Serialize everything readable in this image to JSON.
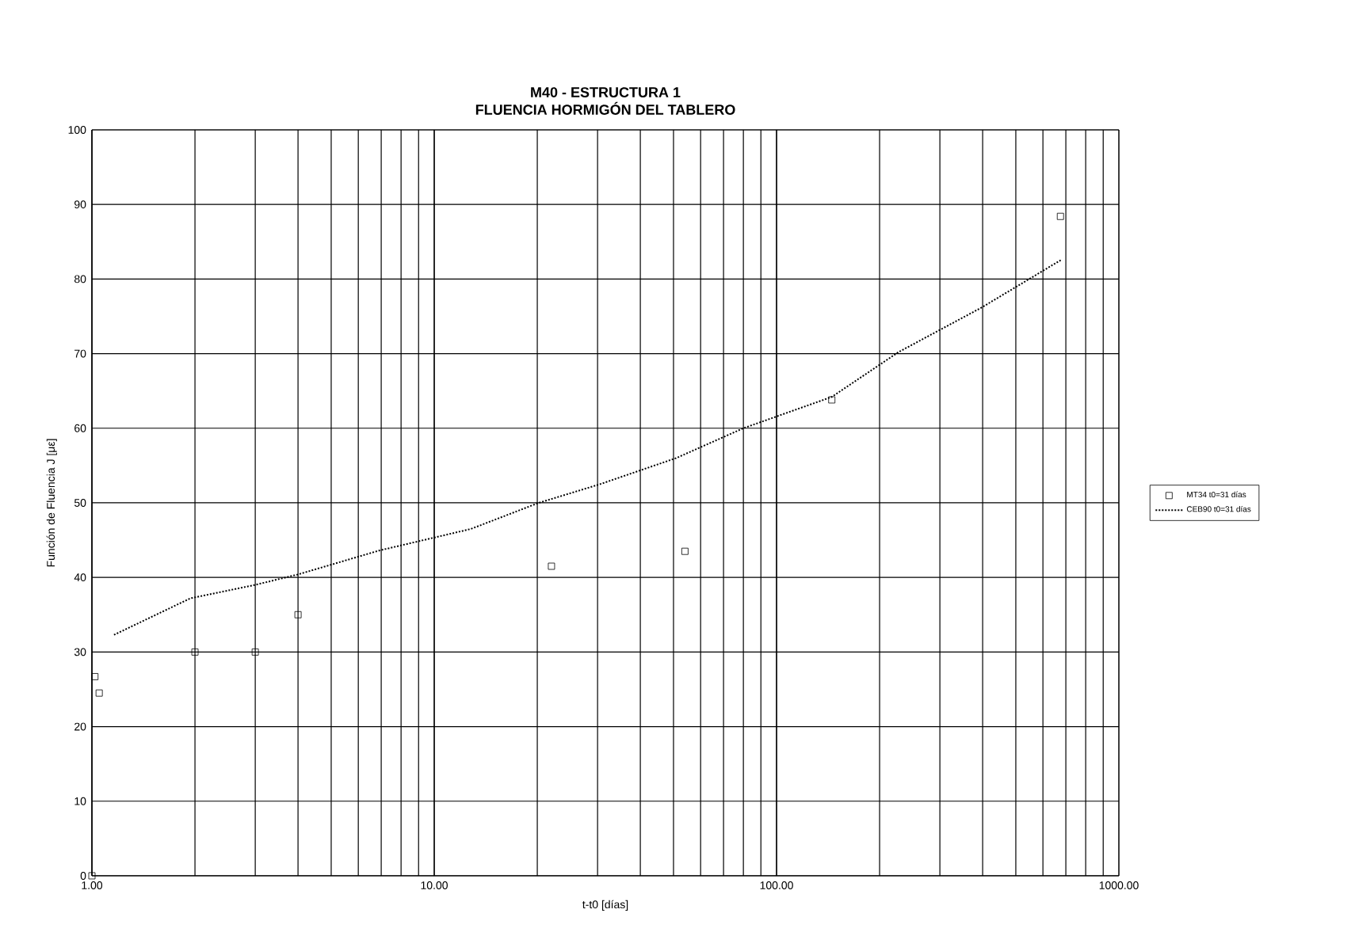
{
  "chart_data": {
    "type": "scatter",
    "title": "M40 - ESTRUCTURA 1",
    "subtitle": "FLUENCIA HORMIGÓN DEL TABLERO",
    "xlabel": "t-t0 [días]",
    "ylabel": "Función de Fluencia J [με]",
    "log": "x",
    "xlim": [
      1,
      1000
    ],
    "xticks": [
      {
        "value": 1,
        "label": "1.00"
      },
      {
        "value": 10,
        "label": "10.00"
      },
      {
        "value": 100,
        "label": "100.00"
      },
      {
        "value": 1000,
        "label": "1000.00"
      }
    ],
    "ylim": [
      0,
      100
    ],
    "yticks": [
      0,
      10,
      20,
      30,
      40,
      50,
      60,
      70,
      80,
      90,
      100
    ],
    "grid": true,
    "legend": "right",
    "series": [
      {
        "name": "MT34 t0=31 días",
        "marker": "square",
        "color": "#000000",
        "x": [
          1,
          1.02,
          1.05,
          2,
          3,
          4,
          22,
          54,
          145,
          675
        ],
        "values": [
          0,
          26.7,
          24.5,
          30,
          30,
          35,
          41.5,
          43.5,
          63.8,
          88.4
        ]
      },
      {
        "name": "CEB90 t0=31 días",
        "type": "line",
        "line_style": "dotted",
        "marker": "none",
        "color": "#000000",
        "x": [
          1.16,
          1.94,
          3,
          4,
          6.9,
          12.8,
          20.2,
          30.5,
          50.9,
          80,
          145,
          227,
          398,
          680
        ],
        "values": [
          32.3,
          37.2,
          39,
          40.4,
          43.6,
          46.5,
          50,
          52.5,
          56,
          60,
          64.2,
          70.2,
          76.2,
          82.6
        ]
      }
    ]
  }
}
